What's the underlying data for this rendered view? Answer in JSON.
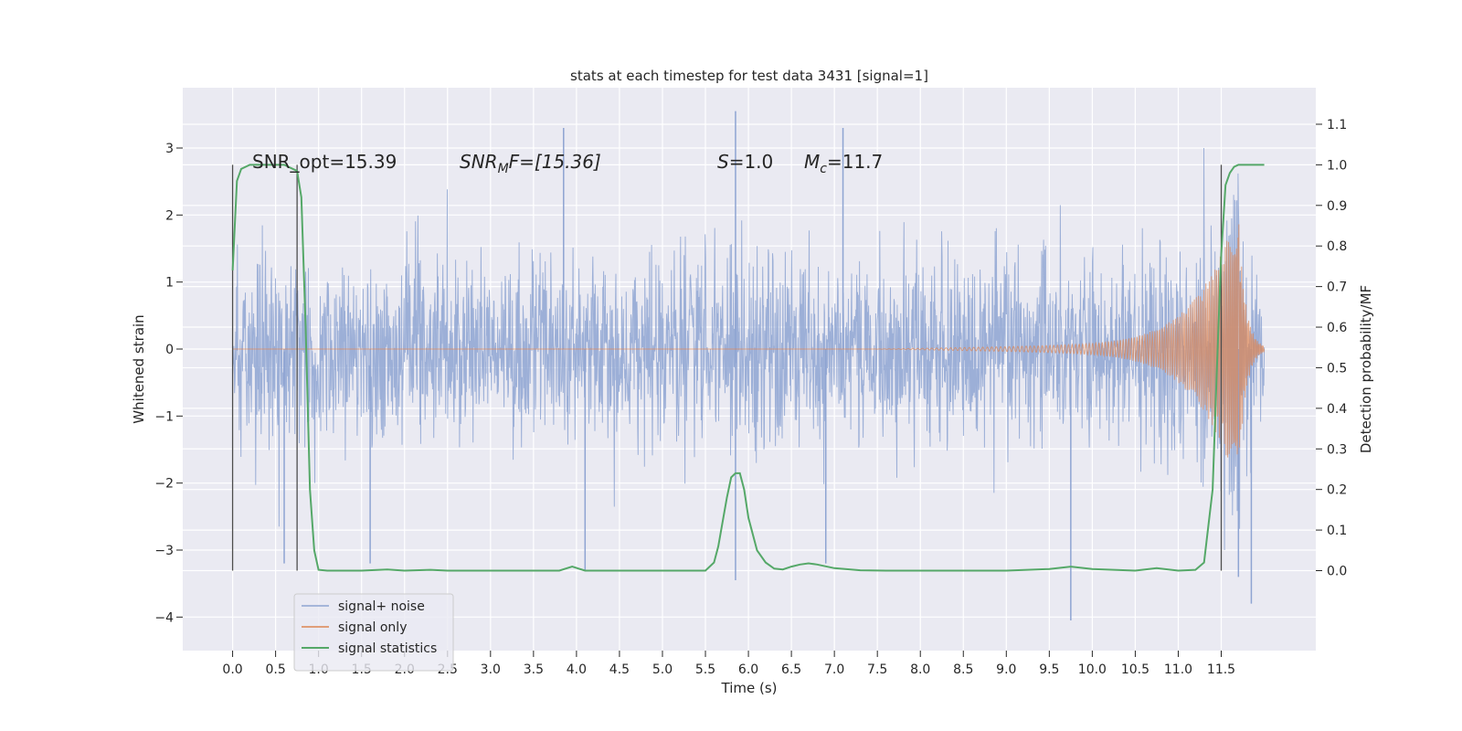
{
  "chart_data": {
    "type": "line",
    "title": "stats at each timestep for test data 3431 [signal=1]",
    "xlabel": "Time (s)",
    "ylabel": "Whitened strain",
    "y2label": "Detection probability/MF",
    "xlim": [
      -0.58,
      12.6
    ],
    "ylim": [
      -4.5,
      3.9
    ],
    "y2lim": [
      -0.197,
      1.19
    ],
    "x_ticks": [
      "0.0",
      "0.5",
      "1.0",
      "1.5",
      "2.0",
      "2.5",
      "3.0",
      "3.5",
      "4.0",
      "4.5",
      "5.0",
      "5.5",
      "6.0",
      "6.5",
      "7.0",
      "7.5",
      "8.0",
      "8.5",
      "9.0",
      "9.5",
      "10.0",
      "10.5",
      "11.0",
      "11.5"
    ],
    "y_ticks": [
      "−4",
      "−3",
      "−2",
      "−1",
      "0",
      "1",
      "2",
      "3"
    ],
    "y2_ticks": [
      "0.0",
      "0.1",
      "0.2",
      "0.3",
      "0.4",
      "0.5",
      "0.6",
      "0.7",
      "0.8",
      "0.9",
      "1.0",
      "1.1"
    ],
    "grid": true,
    "legend_position": "lower-left",
    "annotations": {
      "snr_opt": "SNR_opt=15.39",
      "snr_mf_label": "SNR",
      "snr_mf_sub": "M",
      "snr_mf_rest": "F=[15.36]",
      "s_label": "S",
      "s_value": "=1.0",
      "mc_label": "M",
      "mc_sub": "c",
      "mc_value": "=11.7"
    },
    "vlines_x": [
      0.0,
      0.75,
      11.5
    ],
    "series": [
      {
        "name": "signal+ noise",
        "color": "#8ea4d2",
        "x_range": [
          0.0,
          12.0
        ],
        "typical_range": [
          -1.6,
          1.6
        ],
        "extremes": [
          {
            "x": 5.85,
            "y": 3.55
          },
          {
            "x": 5.85,
            "y": -3.45
          },
          {
            "x": 3.85,
            "y": 3.3
          },
          {
            "x": 7.1,
            "y": 3.3
          },
          {
            "x": 4.1,
            "y": -3.3
          },
          {
            "x": 9.75,
            "y": -4.05
          },
          {
            "x": 11.85,
            "y": -3.8
          },
          {
            "x": 11.7,
            "y": -3.4
          },
          {
            "x": 0.6,
            "y": -3.2
          },
          {
            "x": 1.6,
            "y": -3.2
          },
          {
            "x": 6.9,
            "y": -3.2
          }
        ]
      },
      {
        "name": "signal only",
        "color": "#dd8452",
        "x_range": [
          0.0,
          12.0
        ],
        "chirp_start": 7.4,
        "merger": 11.7,
        "peak_amplitude": 2.0
      },
      {
        "name": "signal statistics",
        "color": "#55a868",
        "axis": "right",
        "x": [
          0.0,
          0.05,
          0.1,
          0.2,
          0.3,
          0.4,
          0.5,
          0.6,
          0.65,
          0.7,
          0.75,
          0.8,
          0.85,
          0.9,
          0.95,
          1.0,
          1.1,
          1.5,
          1.8,
          2.0,
          2.3,
          2.5,
          3.0,
          3.5,
          3.8,
          3.95,
          4.1,
          4.3,
          5.0,
          5.5,
          5.6,
          5.65,
          5.7,
          5.75,
          5.8,
          5.85,
          5.9,
          5.95,
          6.0,
          6.1,
          6.2,
          6.3,
          6.4,
          6.5,
          6.6,
          6.7,
          6.8,
          7.0,
          7.3,
          7.6,
          8.0,
          9.0,
          9.5,
          9.75,
          10.0,
          10.5,
          10.75,
          11.0,
          11.2,
          11.3,
          11.4,
          11.45,
          11.5,
          11.55,
          11.6,
          11.65,
          11.7,
          11.8,
          12.0
        ],
        "y": [
          0.74,
          0.96,
          0.99,
          1.0,
          1.0,
          1.0,
          1.0,
          1.0,
          0.995,
          0.99,
          0.985,
          0.92,
          0.6,
          0.2,
          0.05,
          0.002,
          0.0,
          0.0,
          0.003,
          0.0,
          0.002,
          0.0,
          0.0,
          0.0,
          0.0,
          0.01,
          0.0,
          0.0,
          0.0,
          0.0,
          0.02,
          0.06,
          0.12,
          0.18,
          0.23,
          0.24,
          0.24,
          0.2,
          0.13,
          0.05,
          0.02,
          0.005,
          0.003,
          0.01,
          0.015,
          0.018,
          0.015,
          0.006,
          0.001,
          0.0,
          0.0,
          0.0,
          0.004,
          0.01,
          0.004,
          0.0,
          0.006,
          0.0,
          0.002,
          0.02,
          0.2,
          0.5,
          0.78,
          0.95,
          0.98,
          0.995,
          1.0,
          1.0,
          1.0
        ]
      }
    ]
  }
}
